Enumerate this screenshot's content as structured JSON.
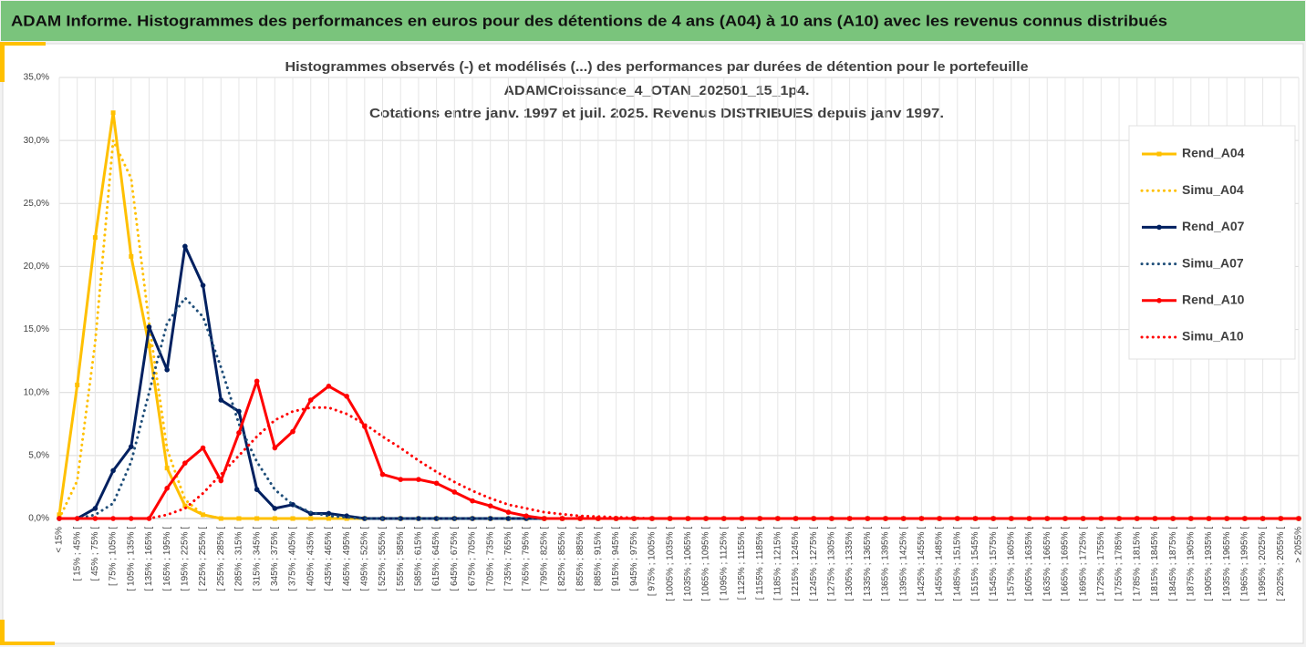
{
  "header": {
    "title": "ADAM Informe. Histogrammes des performances en euros pour des détentions de 4 ans (A04) à 10 ans (A10) avec les revenus connus distribués"
  },
  "chart_data": {
    "type": "line",
    "title": [
      "Histogrammes observés (-) et modélisés (...) des performances par durées de détention pour le portefeuille",
      "ADAMCroissance_4_OTAN_202501_15_1p4.",
      "Cotations entre janv. 1997 et juil. 2025. Revenus DISTRIBUES depuis janv 1997."
    ],
    "categories": [
      "< 15%",
      "[ 15% ; 45% [",
      "[ 45% ; 75% [",
      "[ 75% ; 105% [",
      "[ 105% ; 135% [",
      "[ 135% ; 165% [",
      "[ 165% ; 195% [",
      "[ 195% ; 225% [",
      "[ 225% ; 255% [",
      "[ 255% ; 285% [",
      "[ 285% ; 315% [",
      "[ 315% ; 345% [",
      "[ 345% ; 375% [",
      "[ 375% ; 405% [",
      "[ 405% ; 435% [",
      "[ 435% ; 465% [",
      "[ 465% ; 495% [",
      "[ 495% ; 525% [",
      "[ 525% ; 555% [",
      "[ 555% ; 585% [",
      "[ 585% ; 615% [",
      "[ 615% ; 645% [",
      "[ 645% ; 675% [",
      "[ 675% ; 705% [",
      "[ 705% ; 735% [",
      "[ 735% ; 765% [",
      "[ 765% ; 795% [",
      "[ 795% ; 825% [",
      "[ 825% ; 855% [",
      "[ 855% ; 885% [",
      "[ 885% ; 915% [",
      "[ 915% ; 945% [",
      "[ 945% ; 975% [",
      "[ 975% ; 1005% [",
      "[ 1005% ; 1035% [",
      "[ 1035% ; 1065% [",
      "[ 1065% ; 1095% [",
      "[ 1095% ; 1125% [",
      "[ 1125% ; 1155% [",
      "[ 1155% ; 1185% [",
      "[ 1185% ; 1215% [",
      "[ 1215% ; 1245% [",
      "[ 1245% ; 1275% [",
      "[ 1275% ; 1305% [",
      "[ 1305% ; 1335% [",
      "[ 1335% ; 1365% [",
      "[ 1365% ; 1395% [",
      "[ 1395% ; 1425% [",
      "[ 1425% ; 1455% [",
      "[ 1455% ; 1485% [",
      "[ 1485% ; 1515% [",
      "[ 1515% ; 1545% [",
      "[ 1545% ; 1575% [",
      "[ 1575% ; 1605% [",
      "[ 1605% ; 1635% [",
      "[ 1635% ; 1665% [",
      "[ 1665% ; 1695% [",
      "[ 1695% ; 1725% [",
      "[ 1725% ; 1755% [",
      "[ 1755% ; 1785% [",
      "[ 1785% ; 1815% [",
      "[ 1815% ; 1845% [",
      "[ 1845% ; 1875% [",
      "[ 1875% ; 1905% [",
      "[ 1905% ; 1935% [",
      "[ 1935% ; 1965% [",
      "[ 1965% ; 1995% [",
      "[ 1995% ; 2025% [",
      "[ 2025% ; 2055% [",
      "> 2055%"
    ],
    "series": [
      {
        "name": "Rend_A04",
        "color": "#FFC000",
        "line_style": "solid",
        "marker": "square",
        "values": [
          0.3,
          10.6,
          22.3,
          32.2,
          20.8,
          13.7,
          4.0,
          1.0,
          0.3,
          0,
          0,
          0,
          0,
          0,
          0,
          0,
          0,
          0,
          0,
          0,
          0,
          0,
          0,
          0,
          0,
          0,
          0,
          0,
          0,
          0,
          0,
          0,
          0,
          0,
          0,
          0,
          0,
          0,
          0,
          0,
          0,
          0,
          0,
          0,
          0,
          0,
          0,
          0,
          0,
          0,
          0,
          0,
          0,
          0,
          0,
          0,
          0,
          0,
          0,
          0,
          0,
          0,
          0,
          0,
          0,
          0,
          0,
          0,
          0,
          0
        ]
      },
      {
        "name": "Simu_A04",
        "color": "#FFC000",
        "line_style": "dotted",
        "marker": "none",
        "values": [
          0,
          3.0,
          14,
          30,
          27,
          15.5,
          5.5,
          1.5,
          0.3,
          0,
          0,
          0,
          0,
          0,
          0,
          0,
          0,
          0,
          0,
          0,
          0,
          0,
          0,
          0,
          0,
          0,
          0,
          0,
          0,
          0,
          0,
          0,
          0,
          0,
          0,
          0,
          0,
          0,
          0,
          0,
          0,
          0,
          0,
          0,
          0,
          0,
          0,
          0,
          0,
          0,
          0,
          0,
          0,
          0,
          0,
          0,
          0,
          0,
          0,
          0,
          0,
          0,
          0,
          0,
          0,
          0,
          0,
          0,
          0,
          0
        ]
      },
      {
        "name": "Rend_A07",
        "color": "#002060",
        "line_style": "solid",
        "marker": "circle",
        "values": [
          0,
          0,
          0.8,
          3.8,
          5.7,
          15.2,
          11.8,
          21.6,
          18.5,
          9.4,
          8.5,
          2.3,
          0.8,
          1.1,
          0.4,
          0.4,
          0.2,
          0,
          0,
          0,
          0,
          0,
          0,
          0,
          0,
          0,
          0,
          0,
          0,
          0,
          0,
          0,
          0,
          0,
          0,
          0,
          0,
          0,
          0,
          0,
          0,
          0,
          0,
          0,
          0,
          0,
          0,
          0,
          0,
          0,
          0,
          0,
          0,
          0,
          0,
          0,
          0,
          0,
          0,
          0,
          0,
          0,
          0,
          0,
          0,
          0,
          0,
          0,
          0,
          0
        ]
      },
      {
        "name": "Simu_A07",
        "color": "#1F4E79",
        "line_style": "dotted",
        "marker": "none",
        "values": [
          0,
          0,
          0.3,
          1.2,
          4.5,
          10,
          15.5,
          17.5,
          16,
          12,
          7.5,
          4.5,
          2.3,
          1.1,
          0.5,
          0.2,
          0.1,
          0,
          0,
          0,
          0,
          0,
          0,
          0,
          0,
          0,
          0,
          0,
          0,
          0,
          0,
          0,
          0,
          0,
          0,
          0,
          0,
          0,
          0,
          0,
          0,
          0,
          0,
          0,
          0,
          0,
          0,
          0,
          0,
          0,
          0,
          0,
          0,
          0,
          0,
          0,
          0,
          0,
          0,
          0,
          0,
          0,
          0,
          0,
          0,
          0,
          0,
          0,
          0,
          0
        ]
      },
      {
        "name": "Rend_A10",
        "color": "#FF0000",
        "line_style": "solid",
        "marker": "circle",
        "values": [
          0,
          0,
          0,
          0,
          0,
          0,
          2.4,
          4.4,
          5.6,
          3.0,
          6.8,
          10.9,
          5.6,
          6.9,
          9.4,
          10.5,
          9.7,
          7.3,
          3.5,
          3.1,
          3.1,
          2.8,
          2.1,
          1.4,
          1.0,
          0.5,
          0.2,
          0,
          0,
          0,
          0,
          0,
          0,
          0,
          0,
          0,
          0,
          0,
          0,
          0,
          0,
          0,
          0,
          0,
          0,
          0,
          0,
          0,
          0,
          0,
          0,
          0,
          0,
          0,
          0,
          0,
          0,
          0,
          0,
          0,
          0,
          0,
          0,
          0,
          0,
          0,
          0,
          0,
          0,
          0
        ]
      },
      {
        "name": "Simu_A10",
        "color": "#FF0000",
        "line_style": "dotted",
        "marker": "none",
        "values": [
          0,
          0,
          0,
          0,
          0,
          0,
          0.3,
          0.8,
          2,
          3.5,
          5,
          6.5,
          7.8,
          8.5,
          8.8,
          8.8,
          8.3,
          7.5,
          6.5,
          5.6,
          4.6,
          3.7,
          2.9,
          2.2,
          1.6,
          1.1,
          0.8,
          0.5,
          0.35,
          0.2,
          0.15,
          0.1,
          0.05,
          0,
          0,
          0,
          0,
          0,
          0,
          0,
          0,
          0,
          0,
          0,
          0,
          0,
          0,
          0,
          0,
          0,
          0,
          0,
          0,
          0,
          0,
          0,
          0,
          0,
          0,
          0,
          0,
          0,
          0,
          0,
          0,
          0,
          0,
          0,
          0,
          0
        ]
      }
    ],
    "ylim": [
      0,
      35
    ],
    "yticks": [
      {
        "value": 0,
        "label": "0,0%"
      },
      {
        "value": 5,
        "label": "5,0%"
      },
      {
        "value": 10,
        "label": "10,0%"
      },
      {
        "value": 15,
        "label": "15,0%"
      },
      {
        "value": 20,
        "label": "20,0%"
      },
      {
        "value": 25,
        "label": "25,0%"
      },
      {
        "value": 30,
        "label": "30,0%"
      },
      {
        "value": 35,
        "label": "35,0%"
      }
    ],
    "grid": true,
    "legend": "right"
  }
}
